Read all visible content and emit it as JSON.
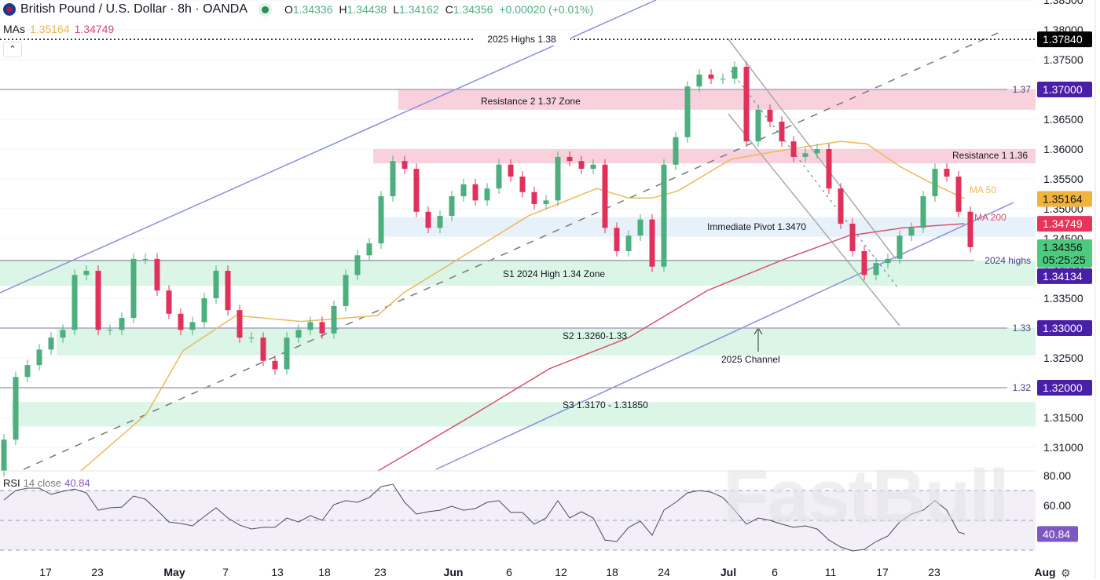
{
  "header": {
    "title": "British Pound / U.S. Dollar · 8h · OANDA",
    "o_label": "O",
    "open": "1.34336",
    "h_label": "H",
    "high": "1.34438",
    "l_label": "L",
    "low": "1.34162",
    "c_label": "C",
    "close": "1.34356",
    "change": "+0.00020 (+0.01%)"
  },
  "mas": {
    "label": "MAs",
    "ma50": "1.35164",
    "ma200": "1.34749"
  },
  "collapse_icon": "chevron-up",
  "rsi_header": {
    "label": "RSI",
    "params": "14 close",
    "value": "40.84"
  },
  "watermark": "FastBull",
  "colors": {
    "up": "#4caf7d",
    "down": "#e0315b",
    "ma50": "#ebb95c",
    "ma200": "#d9536f",
    "rsi": "#4a4a5a",
    "tag_purple": "#4a1fa8",
    "tag_black": "#000000",
    "tag_orange": "#f2b33d",
    "tag_red": "#e8345a",
    "tag_green": "#4ccb7f",
    "rsi_tag": "#7e57c2"
  },
  "chart_data": [
    {
      "type": "candlestick",
      "title": "British Pound / U.S. Dollar · 8h · OANDA",
      "ylim": [
        1.3055,
        1.385
      ],
      "price_ticks": [
        "1.38500",
        "1.38000",
        "1.37500",
        "1.37000",
        "1.36500",
        "1.36000",
        "1.35500",
        "1.35000",
        "1.34500",
        "1.34000",
        "1.33500",
        "1.33000",
        "1.32500",
        "1.32000",
        "1.31500",
        "1.31000"
      ],
      "x_tick_labels": [
        "17",
        "23",
        "May",
        "7",
        "13",
        "18",
        "23",
        "Jun",
        "6",
        "12",
        "18",
        "24",
        "Jul",
        "6",
        "11",
        "17",
        "23",
        "Aug"
      ],
      "first_open": 1.306,
      "closes": [
        1.3113,
        1.3218,
        1.3238,
        1.3264,
        1.3284,
        1.3297,
        1.3389,
        1.3396,
        1.3297,
        1.3297,
        1.3317,
        1.3416,
        1.3416,
        1.3363,
        1.3324,
        1.3297,
        1.331,
        1.335,
        1.3396,
        1.333,
        1.3284,
        1.3284,
        1.3245,
        1.3231,
        1.3284,
        1.3297,
        1.331,
        1.3291,
        1.3337,
        1.3389,
        1.3422,
        1.3442,
        1.3521,
        1.358,
        1.3567,
        1.3495,
        1.3468,
        1.3488,
        1.3521,
        1.3541,
        1.3514,
        1.3534,
        1.3574,
        1.3554,
        1.3528,
        1.3508,
        1.3514,
        1.3587,
        1.358,
        1.3567,
        1.3574,
        1.3468,
        1.3429,
        1.3455,
        1.3482,
        1.3403,
        1.3574,
        1.362,
        1.3705,
        1.3725,
        1.3718,
        1.3718,
        1.3738,
        1.3613,
        1.3666,
        1.3646,
        1.3613,
        1.3587,
        1.3593,
        1.36,
        1.3534,
        1.3475,
        1.3429,
        1.3389,
        1.3409,
        1.3416,
        1.3455,
        1.3468,
        1.3521,
        1.3567,
        1.3554,
        1.3495,
        1.34356
      ],
      "ma50": {
        "name": "MA 50",
        "points": [
          [
            6.5,
            1.306
          ],
          [
            12.1,
            1.3156
          ],
          [
            15.2,
            1.3262
          ],
          [
            19.7,
            1.3321
          ],
          [
            25.2,
            1.3311
          ],
          [
            31.7,
            1.3321
          ],
          [
            33.9,
            1.3359
          ],
          [
            44.5,
            1.3488
          ],
          [
            50.3,
            1.3534
          ],
          [
            53,
            1.3518
          ],
          [
            55,
            1.3518
          ],
          [
            57.2,
            1.353
          ],
          [
            61.7,
            1.3583
          ],
          [
            65.5,
            1.3596
          ],
          [
            71,
            1.3613
          ],
          [
            73.2,
            1.3609
          ],
          [
            76.1,
            1.357
          ],
          [
            78.3,
            1.3547
          ],
          [
            81.5,
            1.3517
          ]
        ]
      },
      "ma200": {
        "name": "MA 200",
        "points": [
          [
            31.7,
            1.306
          ],
          [
            39.7,
            1.3153
          ],
          [
            46.3,
            1.3232
          ],
          [
            53,
            1.3284
          ],
          [
            59.7,
            1.3363
          ],
          [
            66.3,
            1.3416
          ],
          [
            71.7,
            1.3455
          ],
          [
            76.3,
            1.3468
          ],
          [
            81.5,
            1.3475
          ]
        ]
      },
      "zones": [
        {
          "label": "Resistance 2 1.37 Zone",
          "from": 1.3666,
          "to": 1.3701,
          "color": "#f8c9d6"
        },
        {
          "label": "Resistance 1 1.36",
          "from": 1.3576,
          "to": 1.36,
          "color": "#f8c9d6"
        },
        {
          "label": "Immediate Pivot 1.3470",
          "from": 1.3453,
          "to": 1.3486,
          "color": "#e3eff9"
        },
        {
          "label": "S1 2024 High 1.34 Zone",
          "from": 1.3371,
          "to": 1.3413,
          "color": "#d5f3e3"
        },
        {
          "label": "S2 1.3260-1.33",
          "from": 1.3254,
          "to": 1.33,
          "color": "#d5f3e3"
        },
        {
          "label": "S3 1.3170 - 1.31850",
          "from": 1.3135,
          "to": 1.3176,
          "color": "#d5f3e3"
        }
      ],
      "levels": [
        {
          "label": "2025 Highs 1.38",
          "price": 1.3784,
          "tag": "1.37840"
        },
        {
          "label": "1.37",
          "price": 1.37,
          "tag": "1.37000"
        },
        {
          "label": "2024 highs",
          "price": 1.34134,
          "tag": "1.34134"
        },
        {
          "label": "1.33",
          "price": 1.33,
          "tag": "1.33000"
        },
        {
          "label": "1.32",
          "price": 1.32,
          "tag": "1.32000"
        }
      ],
      "annotations": {
        "channel": "2025 Channel",
        "ma50_label": "MA 50",
        "ma200_label": "MA 200"
      },
      "price_tags": {
        "ma50": "1.35164",
        "ma200": "1.34749",
        "last": "1.34356",
        "countdown": "05:25:25"
      }
    },
    {
      "type": "line",
      "title": "RSI 14 close",
      "ylim": [
        25,
        85
      ],
      "ticks": [
        "80.00",
        "60.00"
      ],
      "bands": [
        70,
        50,
        30
      ],
      "values": [
        63.7,
        70,
        71.6,
        71.6,
        67.4,
        69.5,
        71,
        68.4,
        56.8,
        58.4,
        58.9,
        66.3,
        64.2,
        56.8,
        48.9,
        47.9,
        46.3,
        52.6,
        58.4,
        51.6,
        46.8,
        44.2,
        45.3,
        45.3,
        51.6,
        48.9,
        53.2,
        50,
        60.5,
        63.2,
        62.1,
        65.3,
        72.6,
        74.2,
        62.1,
        54.2,
        55.8,
        56.8,
        59.5,
        56.8,
        57.9,
        62.1,
        63.2,
        55.3,
        55.3,
        47.4,
        51.6,
        63.2,
        51.6,
        55.8,
        51.6,
        36.8,
        35.8,
        45.3,
        49.5,
        40,
        56.8,
        62.1,
        68.4,
        70,
        68.9,
        65.3,
        56.8,
        47.4,
        51.6,
        50,
        47.4,
        45.3,
        46.3,
        44.2,
        36.8,
        32.1,
        29.5,
        30.5,
        35.8,
        39.5,
        48.9,
        54.2,
        56.8,
        63.2,
        56.8,
        42.1,
        40.84
      ],
      "last_tag": "40.84"
    }
  ]
}
